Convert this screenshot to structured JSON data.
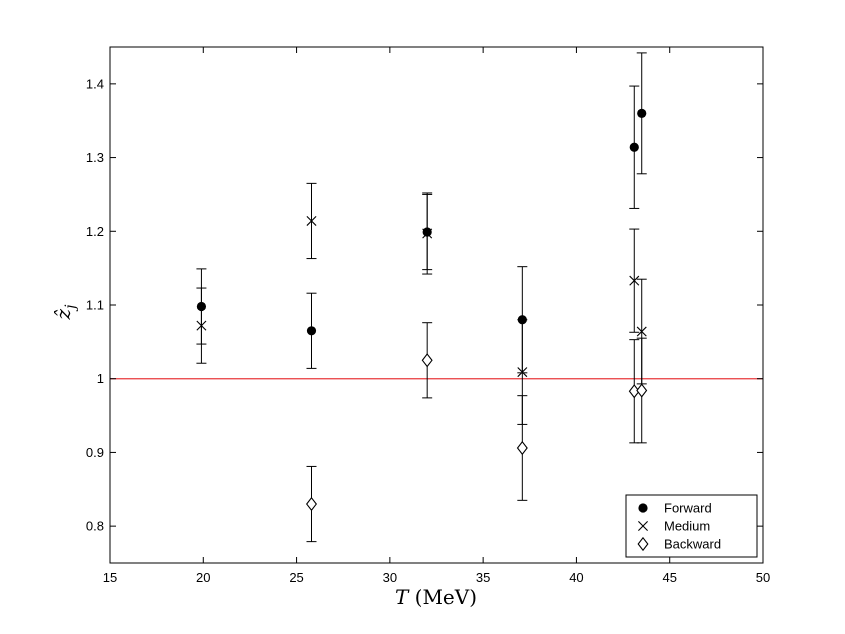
{
  "chart_data": {
    "type": "scatter",
    "xlabel": "T (MeV)",
    "ylabel": "ẑj",
    "xlim": [
      15,
      50
    ],
    "ylim": [
      0.75,
      1.45
    ],
    "xticks": [
      15,
      20,
      25,
      30,
      35,
      40,
      45,
      50
    ],
    "yticks": [
      0.8,
      0.9,
      1,
      1.1,
      1.2,
      1.3,
      1.4
    ],
    "reference_line": {
      "y": 1,
      "color": "#e8383c"
    },
    "legend_position": "bottom-right",
    "grid": false,
    "series": [
      {
        "name": "Forward",
        "marker": "filled-circle",
        "points": [
          {
            "x": 19.9,
            "y": 1.098,
            "yerr": 0.051
          },
          {
            "x": 25.8,
            "y": 1.065,
            "yerr": 0.051
          },
          {
            "x": 32.0,
            "y": 1.199,
            "yerr": 0.051
          },
          {
            "x": 37.1,
            "y": 1.08,
            "yerr": 0.072
          },
          {
            "x": 43.1,
            "y": 1.314,
            "yerr": 0.083
          },
          {
            "x": 43.5,
            "y": 1.36,
            "yerr": 0.082
          }
        ]
      },
      {
        "name": "Medium",
        "marker": "cross",
        "points": [
          {
            "x": 19.9,
            "y": 1.072,
            "yerr": 0.051
          },
          {
            "x": 25.8,
            "y": 1.214,
            "yerr": 0.051
          },
          {
            "x": 32.0,
            "y": 1.197,
            "yerr": 0.055
          },
          {
            "x": 37.1,
            "y": 1.009,
            "yerr": 0.071
          },
          {
            "x": 43.1,
            "y": 1.133,
            "yerr": 0.07
          },
          {
            "x": 43.5,
            "y": 1.064,
            "yerr": 0.071
          }
        ]
      },
      {
        "name": "Backward",
        "marker": "open-diamond",
        "points": [
          {
            "x": 25.8,
            "y": 0.83,
            "yerr": 0.051
          },
          {
            "x": 32.0,
            "y": 1.025,
            "yerr": 0.051
          },
          {
            "x": 37.1,
            "y": 0.906,
            "yerr": 0.071
          },
          {
            "x": 43.1,
            "y": 0.983,
            "yerr": 0.07
          },
          {
            "x": 43.5,
            "y": 0.984,
            "yerr": 0.071
          }
        ]
      }
    ]
  }
}
